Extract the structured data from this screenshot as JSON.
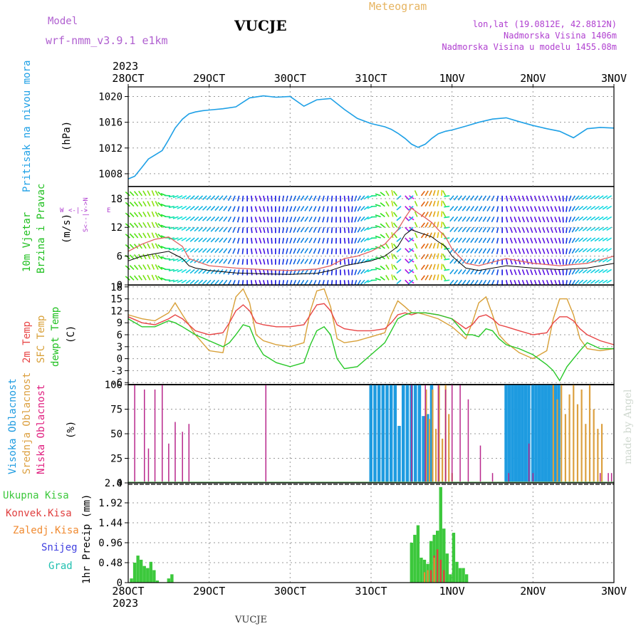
{
  "header": {
    "model_label": "Model",
    "model_name": "wrf-nmm_v3.9.1  e1km",
    "station": "VUCJE",
    "meteogram": "Meteogram",
    "lonlat": "lon,lat (19.0812E, 42.8812N)",
    "altitude": "Nadmorska Visina 1406m",
    "model_altitude": "Nadmorska Visina u modelu 1455.08m",
    "year_top": "2023",
    "year_bottom": "2023",
    "footer_station": "VUCJE",
    "credit": "made by Angel"
  },
  "time_axis": {
    "labels": [
      "28OCT",
      "29OCT",
      "30OCT",
      "31OCT",
      "1NOV",
      "2NOV",
      "3NOV"
    ],
    "range_days": [
      0,
      6
    ]
  },
  "colors": {
    "pressure": "#1ea0e6",
    "temp2m": "#e84545",
    "sfc_temp": "#d8a038",
    "dewpt": "#28c828",
    "cloud_high": "#1e9be0",
    "cloud_mid": "#dca040",
    "cloud_low": "#b8288c",
    "precip_total": "#3cc83c",
    "precip_conv": "#e04040",
    "precip_frozen": "#f08a30",
    "snow": "#4040e0",
    "hail": "#20c0b0",
    "wind_speed": "#000000",
    "wind_gust": "#e06060",
    "compass": "#b040d0"
  },
  "panels": {
    "pressure": {
      "label": "Pritisak na nivou mora",
      "unit": "(hPa)",
      "ticks": [
        "1020",
        "1016",
        "1012",
        "1008"
      ]
    },
    "wind": {
      "label_line1": "10m Vjetar",
      "label_line2": "Brzina i Pravac",
      "unit": "(m/s)",
      "ticks": [
        "18",
        "12",
        "6",
        "0"
      ],
      "compass_w": "W",
      "compass_e": "E",
      "compass_vertical": "S<--|-->N"
    },
    "temperature": {
      "label_2m": "2m Temp",
      "label_sfc": "SFC Temp",
      "label_dew": "dewpt Temp",
      "unit": "(C)",
      "ticks": [
        "18",
        "15",
        "12",
        "9",
        "6",
        "3",
        "0",
        "-3",
        "-6"
      ]
    },
    "cloud": {
      "label_high": "Visoka Oblacnost",
      "label_mid": "Srednja Oblacnost",
      "label_low": "Niska Oblacnost",
      "unit": "(%)",
      "ticks": [
        "100",
        "75",
        "50",
        "25",
        "0"
      ]
    },
    "precip": {
      "label_total": "Ukupna Kisa",
      "label_conv": "Konvek.Kisa",
      "label_frozen": "Zaledj.Kisa",
      "label_snow": "Snijeg",
      "label_hail": "Grad",
      "unit": "1hr Precip (mm)",
      "ticks": [
        "2.4",
        "1.92",
        "1.44",
        "0.96",
        "0.48",
        "0"
      ]
    }
  },
  "chart_data": [
    {
      "type": "line",
      "name": "pressure",
      "ylim": [
        1006,
        1021.5
      ],
      "x": [
        0,
        0.08,
        0.17,
        0.25,
        0.33,
        0.42,
        0.5,
        0.58,
        0.67,
        0.75,
        0.83,
        0.92,
        1.0,
        1.17,
        1.33,
        1.5,
        1.67,
        1.83,
        2.0,
        2.17,
        2.33,
        2.5,
        2.67,
        2.83,
        3.0,
        3.17,
        3.25,
        3.33,
        3.42,
        3.5,
        3.58,
        3.67,
        3.75,
        3.83,
        3.92,
        4.0,
        4.17,
        4.33,
        4.5,
        4.67,
        4.83,
        5.0,
        5.17,
        5.33,
        5.5,
        5.67,
        5.83,
        6.0
      ],
      "y": [
        1007.2,
        1007.6,
        1009.0,
        1010.3,
        1010.9,
        1011.6,
        1013.3,
        1015.1,
        1016.5,
        1017.3,
        1017.6,
        1017.8,
        1017.9,
        1018.1,
        1018.4,
        1019.8,
        1020.1,
        1019.9,
        1020.0,
        1018.5,
        1019.5,
        1019.7,
        1018.0,
        1016.6,
        1015.8,
        1015.3,
        1014.9,
        1014.3,
        1013.5,
        1012.6,
        1012.1,
        1012.6,
        1013.5,
        1014.2,
        1014.6,
        1014.8,
        1015.4,
        1016.0,
        1016.5,
        1016.7,
        1016.1,
        1015.5,
        1015.0,
        1014.6,
        1013.6,
        1015.0,
        1015.2,
        1015.1
      ]
    },
    {
      "type": "line",
      "name": "wind",
      "ylim": [
        0,
        20.5
      ],
      "x": [
        0,
        0.17,
        0.33,
        0.5,
        0.67,
        0.75,
        0.83,
        1.0,
        1.33,
        1.67,
        2.0,
        2.33,
        2.5,
        2.67,
        2.83,
        3.0,
        3.17,
        3.25,
        3.33,
        3.42,
        3.5,
        3.58,
        3.67,
        3.75,
        3.83,
        3.92,
        4.0,
        4.17,
        4.33,
        4.67,
        5.0,
        5.33,
        5.67,
        6.0
      ],
      "speed": [
        5.0,
        6.0,
        6.5,
        7.0,
        5.5,
        4.0,
        3.5,
        3.0,
        2.5,
        2.3,
        2.2,
        2.4,
        3.0,
        4.0,
        4.5,
        5.0,
        6.0,
        7.0,
        8.0,
        10.5,
        11.5,
        11.0,
        10.5,
        10.0,
        9.0,
        8.0,
        6.0,
        3.5,
        3.0,
        4.0,
        3.5,
        3.2,
        3.5,
        4.5
      ],
      "gust": [
        7.0,
        8.5,
        9.5,
        10.0,
        8.0,
        5.5,
        5.0,
        4.0,
        3.5,
        3.2,
        3.0,
        3.3,
        4.0,
        5.5,
        6.0,
        7.0,
        8.5,
        10.0,
        11.5,
        14.0,
        16.0,
        15.0,
        14.0,
        13.0,
        11.5,
        10.0,
        7.5,
        4.5,
        4.0,
        5.5,
        4.5,
        4.0,
        4.5,
        6.0
      ]
    },
    {
      "type": "line",
      "name": "temperature",
      "ylim": [
        -6.5,
        18.5
      ],
      "x": [
        0,
        0.17,
        0.33,
        0.5,
        0.58,
        0.67,
        0.83,
        1.0,
        1.17,
        1.25,
        1.33,
        1.42,
        1.5,
        1.58,
        1.67,
        1.83,
        2.0,
        2.17,
        2.25,
        2.33,
        2.42,
        2.5,
        2.58,
        2.67,
        2.83,
        3.0,
        3.17,
        3.25,
        3.33,
        3.42,
        3.5,
        3.58,
        3.67,
        3.83,
        4.0,
        4.17,
        4.25,
        4.33,
        4.42,
        4.5,
        4.58,
        4.67,
        4.83,
        5.0,
        5.17,
        5.25,
        5.33,
        5.42,
        5.5,
        5.58,
        5.67,
        5.83,
        6.0
      ],
      "t2m": [
        10.5,
        9.0,
        8.5,
        10.0,
        11.0,
        10.0,
        7.0,
        6.0,
        6.5,
        9.0,
        12.0,
        13.5,
        12.0,
        9.0,
        8.5,
        8.0,
        8.0,
        8.5,
        11.0,
        13.5,
        13.8,
        12.0,
        8.5,
        7.5,
        7.0,
        7.0,
        7.5,
        9.0,
        11.0,
        11.5,
        11.0,
        11.5,
        11.5,
        11.0,
        10.0,
        7.5,
        8.5,
        10.5,
        11.0,
        10.0,
        8.5,
        8.0,
        7.0,
        6.0,
        6.5,
        9.0,
        10.5,
        10.5,
        9.5,
        7.5,
        6.0,
        4.5,
        3.5
      ],
      "sfc": [
        11.0,
        10.0,
        9.5,
        11.5,
        14.0,
        11.0,
        6.0,
        2.0,
        1.5,
        9.0,
        15.5,
        17.5,
        14.0,
        6.0,
        4.5,
        3.5,
        3.0,
        4.0,
        12.0,
        17.0,
        17.5,
        13.0,
        5.0,
        4.0,
        4.5,
        5.5,
        6.5,
        11.0,
        14.5,
        13.0,
        11.5,
        11.5,
        11.0,
        10.0,
        8.0,
        5.0,
        9.0,
        14.0,
        15.5,
        11.0,
        6.0,
        4.0,
        1.5,
        0.0,
        2.0,
        10.0,
        15.0,
        15.0,
        11.0,
        5.0,
        2.5,
        2.0,
        2.5
      ],
      "dew": [
        10.0,
        8.0,
        8.0,
        9.5,
        9.0,
        8.0,
        6.0,
        4.5,
        3.0,
        4.0,
        6.0,
        8.5,
        8.0,
        4.0,
        1.0,
        -1.0,
        -2.0,
        -1.0,
        3.5,
        7.0,
        8.0,
        6.0,
        0.0,
        -2.5,
        -2.0,
        1.0,
        4.0,
        7.0,
        10.0,
        11.0,
        11.5,
        11.5,
        11.5,
        11.0,
        10.0,
        6.0,
        6.0,
        5.5,
        7.5,
        7.0,
        5.0,
        3.5,
        2.5,
        1.0,
        -1.5,
        -3.0,
        -5.5,
        -2.0,
        0.0,
        2.0,
        4.0,
        2.5,
        2.5
      ]
    },
    {
      "type": "bar",
      "name": "cloud",
      "ylim": [
        0,
        100
      ],
      "low": {
        "x": [
          0.08,
          0.2,
          0.25,
          0.33,
          0.42,
          0.5,
          0.58,
          0.67,
          0.75,
          1.7,
          3.5,
          3.67,
          3.83,
          3.92,
          4.0,
          4.1,
          4.2,
          4.35,
          4.5,
          4.7,
          4.95,
          5.0,
          5.83,
          5.93,
          5.97
        ],
        "values": [
          100,
          95,
          35,
          95,
          100,
          40,
          62,
          52,
          60,
          100,
          100,
          100,
          100,
          95,
          100,
          100,
          85,
          38,
          10,
          10,
          40,
          10,
          10,
          10,
          10
        ]
      },
      "mid": {
        "x": [
          3.68,
          3.72,
          3.76,
          3.8,
          3.84,
          3.88,
          3.92,
          3.96,
          4.0,
          5.25,
          5.3,
          5.35,
          5.4,
          5.45,
          5.5,
          5.55,
          5.6,
          5.65,
          5.7,
          5.75,
          5.8,
          5.85
        ],
        "values": [
          95,
          65,
          95,
          55,
          100,
          45,
          100,
          70,
          10,
          100,
          85,
          100,
          70,
          90,
          100,
          80,
          95,
          60,
          100,
          75,
          55,
          60
        ]
      },
      "high": {
        "x": [
          3.0,
          3.05,
          3.1,
          3.15,
          3.2,
          3.25,
          3.3,
          3.35,
          3.4,
          3.45,
          3.5,
          3.55,
          3.6,
          3.65,
          3.7,
          3.75,
          4.67,
          4.71,
          4.75,
          4.79,
          4.83,
          4.87,
          4.91,
          4.95,
          5.0,
          5.04,
          5.08,
          5.12,
          5.16,
          5.2,
          5.24,
          5.28,
          5.32
        ],
        "values": [
          100,
          100,
          100,
          100,
          100,
          100,
          100,
          58,
          100,
          100,
          100,
          100,
          100,
          68,
          70,
          100,
          100,
          100,
          100,
          100,
          100,
          100,
          100,
          100,
          100,
          100,
          100,
          100,
          100,
          100,
          100,
          100,
          100
        ]
      }
    },
    {
      "type": "bar",
      "name": "precip",
      "ylim": [
        0,
        2.4
      ],
      "total": {
        "x": [
          0.04,
          0.08,
          0.12,
          0.16,
          0.2,
          0.24,
          0.28,
          0.32,
          0.36,
          0.5,
          0.54,
          3.5,
          3.54,
          3.58,
          3.62,
          3.66,
          3.7,
          3.74,
          3.78,
          3.82,
          3.86,
          3.9,
          3.94,
          3.98,
          4.02,
          4.06,
          4.1,
          4.14,
          4.18
        ],
        "values": [
          0.1,
          0.48,
          0.65,
          0.55,
          0.4,
          0.35,
          0.5,
          0.3,
          0.05,
          0.1,
          0.2,
          0.96,
          1.15,
          1.38,
          0.6,
          0.55,
          0.45,
          1.0,
          1.15,
          1.25,
          2.3,
          1.3,
          0.7,
          0.2,
          1.2,
          0.5,
          0.35,
          0.35,
          0.2
        ]
      },
      "conv": {
        "x": [
          3.74,
          3.78,
          3.82,
          3.86,
          3.9
        ],
        "values": [
          0.3,
          0.65,
          0.8,
          0.55,
          0.3
        ]
      },
      "frozen": {
        "x": [
          3.66,
          3.7,
          3.78
        ],
        "values": [
          0.25,
          0.3,
          0.6
        ]
      }
    }
  ]
}
